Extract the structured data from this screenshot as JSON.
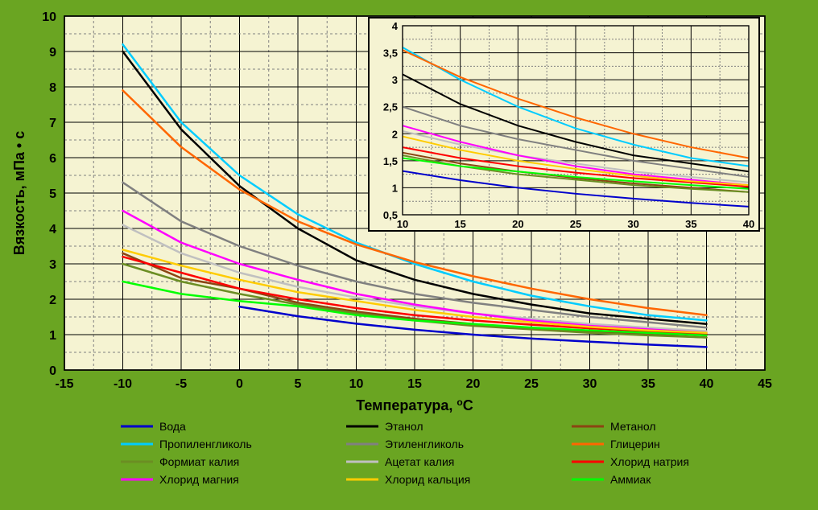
{
  "chart": {
    "type": "line",
    "background_color": "#6aa522",
    "plot_background": "#f5f3d2",
    "border_color": "#000000",
    "grid_major_color": "#000000",
    "grid_minor_color": "#808080",
    "xlabel": "Температура, °C",
    "ylabel": "Вязкость, мПа • с",
    "label_fontsize": 18,
    "tick_fontsize": 16,
    "xlim": [
      -15,
      45
    ],
    "ylim": [
      0,
      10
    ],
    "xtick_step": 5,
    "ytick_step": 1,
    "x_data_min": -10,
    "x_data_max": 40,
    "series": [
      {
        "name": "Вода",
        "color": "#0000cc",
        "y": [
          null,
          null,
          1.79,
          1.52,
          1.31,
          1.14,
          1.0,
          0.89,
          0.8,
          0.72,
          0.65
        ]
      },
      {
        "name": "Этанол",
        "color": "#000000",
        "y": [
          9.0,
          6.8,
          5.2,
          4.0,
          3.1,
          2.55,
          2.15,
          1.85,
          1.6,
          1.45,
          1.3
        ]
      },
      {
        "name": "Метанол",
        "color": "#8b4513",
        "y": [
          3.3,
          2.6,
          2.3,
          1.9,
          1.65,
          1.45,
          1.3,
          1.18,
          1.08,
          1.0,
          0.92
        ]
      },
      {
        "name": "Пропиленгликоль",
        "color": "#00ccff",
        "y": [
          9.2,
          7.0,
          5.5,
          4.4,
          3.6,
          3.0,
          2.5,
          2.1,
          1.8,
          1.55,
          1.4
        ]
      },
      {
        "name": "Этиленгликоль",
        "color": "#808080",
        "y": [
          5.3,
          4.2,
          3.5,
          2.95,
          2.5,
          2.15,
          1.9,
          1.7,
          1.5,
          1.35,
          1.2
        ]
      },
      {
        "name": "Глицерин",
        "color": "#ff6600",
        "y": [
          7.9,
          6.3,
          5.1,
          4.2,
          3.55,
          3.05,
          2.65,
          2.3,
          2.0,
          1.75,
          1.55
        ]
      },
      {
        "name": "Формиат калия",
        "color": "#6b8e23",
        "y": [
          3.0,
          2.5,
          2.15,
          1.85,
          1.6,
          1.4,
          1.25,
          1.15,
          1.05,
          0.98,
          0.92
        ]
      },
      {
        "name": "Ацетат калия",
        "color": "#c0c0c0",
        "y": [
          4.1,
          3.3,
          2.75,
          2.35,
          2.05,
          1.8,
          1.6,
          1.45,
          1.3,
          1.2,
          1.1
        ]
      },
      {
        "name": "Хлорид натрия",
        "color": "#ff0000",
        "y": [
          3.2,
          2.75,
          2.3,
          2.0,
          1.75,
          1.55,
          1.4,
          1.28,
          1.18,
          1.1,
          1.02
        ]
      },
      {
        "name": "Хлорид магния",
        "color": "#ff00ff",
        "y": [
          4.5,
          3.6,
          3.0,
          2.55,
          2.15,
          1.85,
          1.6,
          1.4,
          1.25,
          1.15,
          1.05
        ]
      },
      {
        "name": "Хлорид кальция",
        "color": "#ffcc00",
        "y": [
          3.4,
          2.95,
          2.55,
          2.2,
          1.95,
          1.7,
          1.5,
          1.35,
          1.22,
          1.12,
          1.05
        ]
      },
      {
        "name": "Аммиак",
        "color": "#00ff00",
        "y": [
          2.5,
          2.15,
          1.95,
          1.8,
          1.55,
          1.4,
          1.3,
          1.2,
          1.12,
          1.05,
          0.98
        ]
      }
    ],
    "legend": {
      "columns": 3,
      "line_length": 40
    }
  },
  "inset": {
    "type": "line",
    "plot_background": "#f5f3d2",
    "border_color": "#000000",
    "grid_major_color": "#000000",
    "grid_minor_color": "#808080",
    "xlim": [
      10,
      40
    ],
    "ylim": [
      0.5,
      4
    ],
    "xticks": [
      10,
      15,
      20,
      25,
      30,
      35,
      40
    ],
    "yticks": [
      0.5,
      1,
      1.5,
      2,
      2.5,
      3,
      3.5,
      4
    ],
    "tick_fontsize": 13
  }
}
